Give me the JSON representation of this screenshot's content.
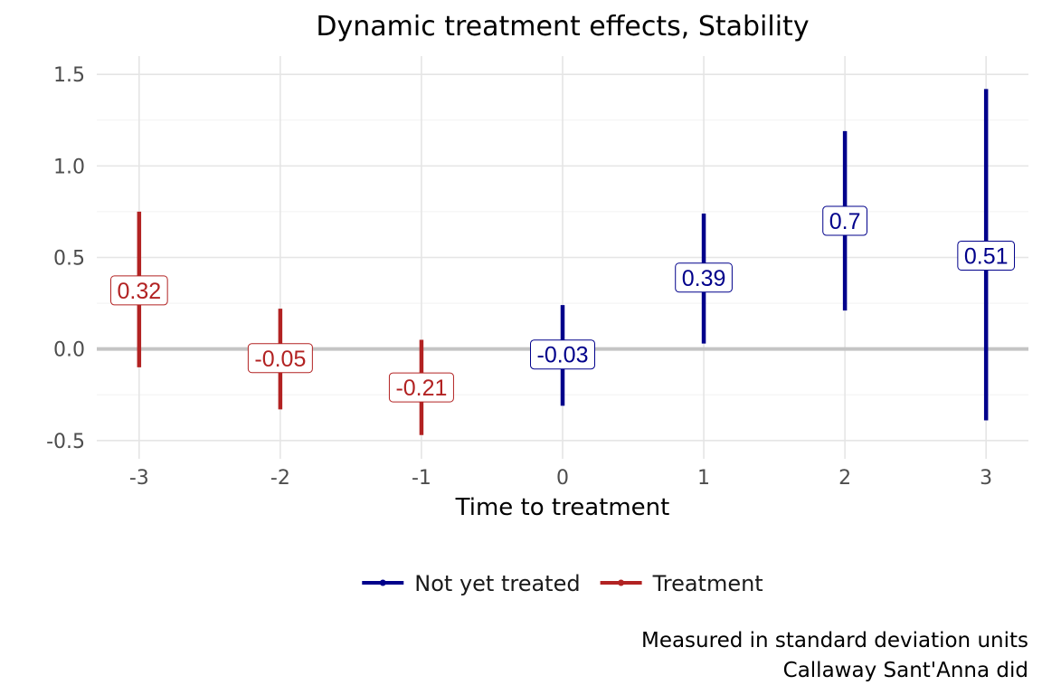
{
  "chart_data": {
    "type": "errorbar",
    "title": "Dynamic treatment effects, Stability",
    "xlabel": "Time to treatment",
    "ylabel": "",
    "x_ticks": [
      -3,
      -2,
      -1,
      0,
      1,
      2,
      3
    ],
    "y_ticks": [
      -0.5,
      0.0,
      0.5,
      1.0,
      1.5
    ],
    "y_tick_labels": [
      "-0.5",
      "0.0",
      "0.5",
      "1.0",
      "1.5"
    ],
    "xlim": [
      -3.3,
      3.3
    ],
    "ylim": [
      -0.6,
      1.6
    ],
    "grid": true,
    "reference_line": 0,
    "legend_position": "bottom",
    "series": [
      {
        "name": "Not yet treated",
        "color": "#00008b",
        "points": [
          {
            "x": 0,
            "estimate": -0.03,
            "lower": -0.31,
            "upper": 0.24,
            "label": "-0.03"
          },
          {
            "x": 1,
            "estimate": 0.39,
            "lower": 0.03,
            "upper": 0.74,
            "label": "0.39"
          },
          {
            "x": 2,
            "estimate": 0.7,
            "lower": 0.21,
            "upper": 1.19,
            "label": "0.7"
          },
          {
            "x": 3,
            "estimate": 0.51,
            "lower": -0.39,
            "upper": 1.42,
            "label": "0.51"
          }
        ]
      },
      {
        "name": "Treatment",
        "color": "#b22222",
        "points": [
          {
            "x": -3,
            "estimate": 0.32,
            "lower": -0.1,
            "upper": 0.75,
            "label": "0.32"
          },
          {
            "x": -2,
            "estimate": -0.05,
            "lower": -0.33,
            "upper": 0.22,
            "label": "-0.05"
          },
          {
            "x": -1,
            "estimate": -0.21,
            "lower": -0.47,
            "upper": 0.05,
            "label": "-0.21"
          }
        ]
      }
    ],
    "caption": [
      "Measured in standard deviation units",
      "Callaway Sant'Anna did"
    ]
  }
}
